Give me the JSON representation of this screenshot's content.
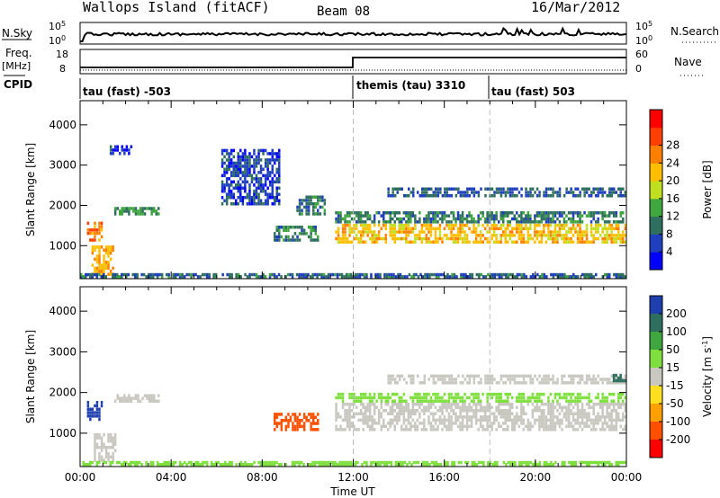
{
  "header": {
    "station": "Wallops Island (fitACF)",
    "beam": "Beam 08",
    "date": "16/Mar/2012"
  },
  "strips": {
    "nsky": {
      "label": "N.Sky",
      "ticks": [
        "10^5",
        "10^0"
      ]
    },
    "nsearch": {
      "label": "N.Search",
      "ticks": [
        "10^5",
        "10^0"
      ]
    },
    "freq": {
      "label": "Freq.",
      "unit": "[MHz]",
      "ticks": [
        "18",
        "8"
      ]
    },
    "nave": {
      "label": "Nave",
      "ticks": [
        "60",
        "0"
      ]
    },
    "cpid": {
      "label": "CPID",
      "segments": [
        {
          "label": "tau (fast) -503",
          "start_hr": 0
        },
        {
          "label": "themis (tau) 3310",
          "start_hr": 12
        },
        {
          "label": "tau (fast) 503",
          "start_hr": 18
        }
      ]
    }
  },
  "chart_data": [
    {
      "type": "heatmap",
      "title": "Power",
      "ylabel": "Slant Range [km]",
      "xlabel": "Time UT",
      "xlim": [
        0,
        24
      ],
      "ylim": [
        180,
        4600
      ],
      "yticks": [
        "1000",
        "2000",
        "3000",
        "4000"
      ],
      "colorbar": {
        "label": "Power [dB]",
        "ticks": [
          "4",
          "8",
          "12",
          "16",
          "20",
          "24",
          "28"
        ],
        "colors": [
          "#0000ff",
          "#1f3fbf",
          "#2f6f5f",
          "#3fa640",
          "#bfdf20",
          "#ffbf00",
          "#ff8000",
          "#ff4000",
          "#ff0000"
        ]
      },
      "features": [
        {
          "x": [
            0.3,
            1.0
          ],
          "y": [
            1100,
            1600
          ],
          "value": 26
        },
        {
          "x": [
            0.5,
            1.5
          ],
          "y": [
            250,
            1000
          ],
          "value": 24
        },
        {
          "x": [
            1.5,
            3.5
          ],
          "y": [
            1750,
            1950
          ],
          "value": 12
        },
        {
          "x": [
            1.3,
            2.3
          ],
          "y": [
            3250,
            3500
          ],
          "value": 5
        },
        {
          "x": [
            6.2,
            8.8
          ],
          "y": [
            2000,
            3400
          ],
          "value": 6
        },
        {
          "x": [
            8.5,
            10.5
          ],
          "y": [
            1100,
            1500
          ],
          "value": 10
        },
        {
          "x": [
            9.5,
            10.8
          ],
          "y": [
            1750,
            2250
          ],
          "value": 10
        },
        {
          "x": [
            11.2,
            24.0
          ],
          "y": [
            1050,
            1550
          ],
          "value": 22
        },
        {
          "x": [
            11.2,
            24.0
          ],
          "y": [
            1550,
            1850
          ],
          "value": 10
        },
        {
          "x": [
            13.5,
            24.0
          ],
          "y": [
            2200,
            2450
          ],
          "value": 8
        },
        {
          "x": [
            0.0,
            24.0
          ],
          "y": [
            190,
            290
          ],
          "value": 9
        }
      ]
    },
    {
      "type": "heatmap",
      "title": "Velocity",
      "ylabel": "Slant Range [km]",
      "xlabel": "Time UT",
      "xlim": [
        0,
        24
      ],
      "ylim": [
        180,
        4600
      ],
      "yticks": [
        "1000",
        "2000",
        "3000",
        "4000"
      ],
      "xticks": [
        "00:00",
        "04:00",
        "08:00",
        "12:00",
        "16:00",
        "20:00",
        "00:00"
      ],
      "colorbar": {
        "label": "Velocity [m s^-1]",
        "ticks": [
          "200",
          "100",
          "50",
          "15",
          "-15",
          "-50",
          "-100",
          "-200"
        ],
        "colors": [
          "#1f3faf",
          "#2f6f5f",
          "#3fa640",
          "#7fdf3f",
          "#c8c8c0",
          "#ffdf20",
          "#ffa000",
          "#ff5000",
          "#ff0000"
        ]
      },
      "features": [
        {
          "x": [
            0.3,
            1.0
          ],
          "y": [
            1300,
            1800
          ],
          "value": 220
        },
        {
          "x": [
            0.6,
            1.6
          ],
          "y": [
            300,
            1000
          ],
          "value": 0
        },
        {
          "x": [
            1.5,
            3.5
          ],
          "y": [
            1750,
            1950
          ],
          "value": 0
        },
        {
          "x": [
            8.5,
            10.5
          ],
          "y": [
            1050,
            1500
          ],
          "value": -120
        },
        {
          "x": [
            11.2,
            24.0
          ],
          "y": [
            1050,
            1750
          ],
          "value": 0
        },
        {
          "x": [
            11.2,
            24.0
          ],
          "y": [
            1750,
            2000
          ],
          "value": 30
        },
        {
          "x": [
            13.5,
            24.0
          ],
          "y": [
            2200,
            2450
          ],
          "value": 0
        },
        {
          "x": [
            23.4,
            24.0
          ],
          "y": [
            2250,
            2450
          ],
          "value": 180
        },
        {
          "x": [
            0.0,
            24.0
          ],
          "y": [
            190,
            290
          ],
          "value": 40
        }
      ]
    }
  ]
}
